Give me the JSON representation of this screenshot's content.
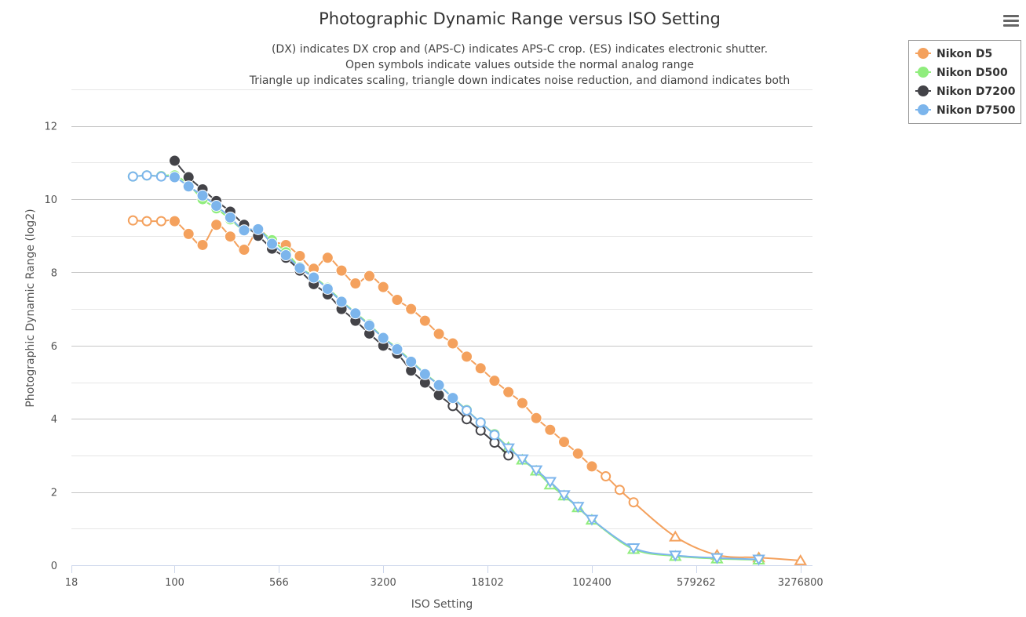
{
  "chart_data": {
    "type": "line",
    "title": "Photographic Dynamic Range versus ISO Setting",
    "subtitle": [
      "(DX) indicates DX crop and (APS-C) indicates APS-C crop. (ES) indicates electronic shutter.",
      "Open symbols indicate values outside the normal analog range",
      "Triangle up indicates scaling, triangle down indicates noise reduction, and diamond indicates both"
    ],
    "xlabel": "ISO Setting",
    "ylabel": "Photographic Dynamic Range (log2)",
    "x_scale": "log2",
    "xlim": [
      18,
      4000000
    ],
    "ylim": [
      0,
      13
    ],
    "x_tick_labels": [
      {
        "value": 18,
        "label": "18"
      },
      {
        "value": 100,
        "label": "100"
      },
      {
        "value": 566,
        "label": "566"
      },
      {
        "value": 3200,
        "label": "3200"
      },
      {
        "value": 18102,
        "label": "18102"
      },
      {
        "value": 102400,
        "label": "102400"
      },
      {
        "value": 579262,
        "label": "579262"
      },
      {
        "value": 3276800,
        "label": "3276800"
      }
    ],
    "y_ticks": [
      0,
      2,
      4,
      6,
      8,
      10,
      12
    ],
    "grid": true,
    "legend_placement": "top-right",
    "series": [
      {
        "name": "Nikon D5",
        "color": "#f4a15d",
        "points": [
          {
            "x": 50,
            "y": 9.42,
            "m": "open"
          },
          {
            "x": 63,
            "y": 9.4,
            "m": "open"
          },
          {
            "x": 80,
            "y": 9.4,
            "m": "open"
          },
          {
            "x": 100,
            "y": 9.4,
            "m": "filled"
          },
          {
            "x": 126,
            "y": 9.05,
            "m": "filled"
          },
          {
            "x": 159,
            "y": 8.75,
            "m": "filled"
          },
          {
            "x": 200,
            "y": 9.3,
            "m": "filled"
          },
          {
            "x": 252,
            "y": 8.98,
            "m": "filled"
          },
          {
            "x": 317,
            "y": 8.62,
            "m": "filled"
          },
          {
            "x": 400,
            "y": 9.15,
            "m": "filled"
          },
          {
            "x": 504,
            "y": 8.85,
            "m": "filled"
          },
          {
            "x": 635,
            "y": 8.75,
            "m": "filled"
          },
          {
            "x": 800,
            "y": 8.45,
            "m": "filled"
          },
          {
            "x": 1008,
            "y": 8.1,
            "m": "filled"
          },
          {
            "x": 1270,
            "y": 8.4,
            "m": "filled"
          },
          {
            "x": 1600,
            "y": 8.05,
            "m": "filled"
          },
          {
            "x": 2016,
            "y": 7.7,
            "m": "filled"
          },
          {
            "x": 2540,
            "y": 7.9,
            "m": "filled"
          },
          {
            "x": 3200,
            "y": 7.6,
            "m": "filled"
          },
          {
            "x": 4032,
            "y": 7.25,
            "m": "filled"
          },
          {
            "x": 5080,
            "y": 7.0,
            "m": "filled"
          },
          {
            "x": 6400,
            "y": 6.68,
            "m": "filled"
          },
          {
            "x": 8063,
            "y": 6.32,
            "m": "filled"
          },
          {
            "x": 10159,
            "y": 6.06,
            "m": "filled"
          },
          {
            "x": 12800,
            "y": 5.7,
            "m": "filled"
          },
          {
            "x": 16127,
            "y": 5.38,
            "m": "filled"
          },
          {
            "x": 20319,
            "y": 5.04,
            "m": "filled"
          },
          {
            "x": 25600,
            "y": 4.73,
            "m": "filled"
          },
          {
            "x": 32254,
            "y": 4.43,
            "m": "filled"
          },
          {
            "x": 40637,
            "y": 4.02,
            "m": "filled"
          },
          {
            "x": 51200,
            "y": 3.7,
            "m": "filled"
          },
          {
            "x": 64508,
            "y": 3.37,
            "m": "filled"
          },
          {
            "x": 81275,
            "y": 3.05,
            "m": "filled"
          },
          {
            "x": 102400,
            "y": 2.7,
            "m": "filled"
          },
          {
            "x": 129016,
            "y": 2.43,
            "m": "open"
          },
          {
            "x": 162550,
            "y": 2.06,
            "m": "open"
          },
          {
            "x": 204800,
            "y": 1.72,
            "m": "open"
          },
          {
            "x": 409600,
            "y": 0.78,
            "m": "tri-up"
          },
          {
            "x": 819200,
            "y": 0.28,
            "m": "tri-up"
          },
          {
            "x": 1638400,
            "y": 0.21,
            "m": "tri-up"
          },
          {
            "x": 3276800,
            "y": 0.13,
            "m": "tri-up"
          }
        ]
      },
      {
        "name": "Nikon D500",
        "color": "#90ed7d",
        "points": [
          {
            "x": 50,
            "y": 10.62,
            "m": "open"
          },
          {
            "x": 63,
            "y": 10.65,
            "m": "open"
          },
          {
            "x": 80,
            "y": 10.63,
            "m": "open"
          },
          {
            "x": 100,
            "y": 10.65,
            "m": "filled"
          },
          {
            "x": 126,
            "y": 10.4,
            "m": "filled"
          },
          {
            "x": 159,
            "y": 10.0,
            "m": "filled"
          },
          {
            "x": 200,
            "y": 9.75,
            "m": "filled"
          },
          {
            "x": 252,
            "y": 9.45,
            "m": "filled"
          },
          {
            "x": 317,
            "y": 9.15,
            "m": "filled"
          },
          {
            "x": 400,
            "y": 9.15,
            "m": "filled"
          },
          {
            "x": 504,
            "y": 8.88,
            "m": "filled"
          },
          {
            "x": 635,
            "y": 8.55,
            "m": "filled"
          },
          {
            "x": 800,
            "y": 8.15,
            "m": "filled"
          },
          {
            "x": 1008,
            "y": 7.88,
            "m": "filled"
          },
          {
            "x": 1270,
            "y": 7.58,
            "m": "filled"
          },
          {
            "x": 1600,
            "y": 7.22,
            "m": "filled"
          },
          {
            "x": 2016,
            "y": 6.9,
            "m": "filled"
          },
          {
            "x": 2540,
            "y": 6.58,
            "m": "filled"
          },
          {
            "x": 3200,
            "y": 6.22,
            "m": "filled"
          },
          {
            "x": 4032,
            "y": 5.93,
            "m": "filled"
          },
          {
            "x": 5080,
            "y": 5.58,
            "m": "filled"
          },
          {
            "x": 6400,
            "y": 5.24,
            "m": "filled"
          },
          {
            "x": 8063,
            "y": 4.93,
            "m": "filled"
          },
          {
            "x": 10159,
            "y": 4.58,
            "m": "filled"
          },
          {
            "x": 12800,
            "y": 4.24,
            "m": "open"
          },
          {
            "x": 16127,
            "y": 3.9,
            "m": "open"
          },
          {
            "x": 20319,
            "y": 3.58,
            "m": "open"
          },
          {
            "x": 25600,
            "y": 3.22,
            "m": "tri-up"
          },
          {
            "x": 32254,
            "y": 2.88,
            "m": "tri-up"
          },
          {
            "x": 40637,
            "y": 2.58,
            "m": "tri-up"
          },
          {
            "x": 51200,
            "y": 2.2,
            "m": "tri-up"
          },
          {
            "x": 64508,
            "y": 1.9,
            "m": "tri-up"
          },
          {
            "x": 81275,
            "y": 1.58,
            "m": "tri-up"
          },
          {
            "x": 102400,
            "y": 1.24,
            "m": "tri-up"
          },
          {
            "x": 204800,
            "y": 0.44,
            "m": "tri-up"
          },
          {
            "x": 409600,
            "y": 0.25,
            "m": "tri-up"
          },
          {
            "x": 819200,
            "y": 0.18,
            "m": "tri-up"
          },
          {
            "x": 1638400,
            "y": 0.15,
            "m": "tri-up"
          }
        ]
      },
      {
        "name": "Nikon D7200",
        "color": "#434348",
        "points": [
          {
            "x": 100,
            "y": 11.05,
            "m": "filled"
          },
          {
            "x": 126,
            "y": 10.6,
            "m": "filled"
          },
          {
            "x": 159,
            "y": 10.27,
            "m": "filled"
          },
          {
            "x": 200,
            "y": 9.95,
            "m": "filled"
          },
          {
            "x": 252,
            "y": 9.66,
            "m": "filled"
          },
          {
            "x": 317,
            "y": 9.3,
            "m": "filled"
          },
          {
            "x": 400,
            "y": 9.0,
            "m": "filled"
          },
          {
            "x": 504,
            "y": 8.65,
            "m": "filled"
          },
          {
            "x": 635,
            "y": 8.4,
            "m": "filled"
          },
          {
            "x": 800,
            "y": 8.05,
            "m": "filled"
          },
          {
            "x": 1008,
            "y": 7.68,
            "m": "filled"
          },
          {
            "x": 1270,
            "y": 7.4,
            "m": "filled"
          },
          {
            "x": 1600,
            "y": 7.0,
            "m": "filled"
          },
          {
            "x": 2016,
            "y": 6.68,
            "m": "filled"
          },
          {
            "x": 2540,
            "y": 6.33,
            "m": "filled"
          },
          {
            "x": 3200,
            "y": 6.0,
            "m": "filled"
          },
          {
            "x": 4032,
            "y": 5.78,
            "m": "filled"
          },
          {
            "x": 5080,
            "y": 5.32,
            "m": "filled"
          },
          {
            "x": 6400,
            "y": 4.99,
            "m": "filled"
          },
          {
            "x": 8063,
            "y": 4.65,
            "m": "filled"
          },
          {
            "x": 10159,
            "y": 4.35,
            "m": "open"
          },
          {
            "x": 12800,
            "y": 3.99,
            "m": "open"
          },
          {
            "x": 16127,
            "y": 3.68,
            "m": "open"
          },
          {
            "x": 20319,
            "y": 3.35,
            "m": "open"
          },
          {
            "x": 25600,
            "y": 3.0,
            "m": "open"
          }
        ]
      },
      {
        "name": "Nikon D7500",
        "color": "#7cb5ec",
        "points": [
          {
            "x": 50,
            "y": 10.62,
            "m": "open"
          },
          {
            "x": 63,
            "y": 10.65,
            "m": "open"
          },
          {
            "x": 80,
            "y": 10.62,
            "m": "open"
          },
          {
            "x": 100,
            "y": 10.6,
            "m": "filled"
          },
          {
            "x": 126,
            "y": 10.35,
            "m": "filled"
          },
          {
            "x": 159,
            "y": 10.1,
            "m": "filled"
          },
          {
            "x": 200,
            "y": 9.82,
            "m": "filled"
          },
          {
            "x": 252,
            "y": 9.5,
            "m": "filled"
          },
          {
            "x": 317,
            "y": 9.15,
            "m": "filled"
          },
          {
            "x": 400,
            "y": 9.18,
            "m": "filled"
          },
          {
            "x": 504,
            "y": 8.78,
            "m": "filled"
          },
          {
            "x": 635,
            "y": 8.47,
            "m": "filled"
          },
          {
            "x": 800,
            "y": 8.12,
            "m": "filled"
          },
          {
            "x": 1008,
            "y": 7.86,
            "m": "filled"
          },
          {
            "x": 1270,
            "y": 7.55,
            "m": "filled"
          },
          {
            "x": 1600,
            "y": 7.2,
            "m": "filled"
          },
          {
            "x": 2016,
            "y": 6.88,
            "m": "filled"
          },
          {
            "x": 2540,
            "y": 6.55,
            "m": "filled"
          },
          {
            "x": 3200,
            "y": 6.21,
            "m": "filled"
          },
          {
            "x": 4032,
            "y": 5.9,
            "m": "filled"
          },
          {
            "x": 5080,
            "y": 5.56,
            "m": "filled"
          },
          {
            "x": 6400,
            "y": 5.22,
            "m": "filled"
          },
          {
            "x": 8063,
            "y": 4.92,
            "m": "filled"
          },
          {
            "x": 10159,
            "y": 4.57,
            "m": "filled"
          },
          {
            "x": 12800,
            "y": 4.23,
            "m": "open"
          },
          {
            "x": 16127,
            "y": 3.9,
            "m": "open"
          },
          {
            "x": 20319,
            "y": 3.56,
            "m": "open"
          },
          {
            "x": 25600,
            "y": 3.2,
            "m": "tri-down"
          },
          {
            "x": 32254,
            "y": 2.9,
            "m": "tri-down"
          },
          {
            "x": 40637,
            "y": 2.6,
            "m": "tri-down"
          },
          {
            "x": 51200,
            "y": 2.28,
            "m": "tri-down"
          },
          {
            "x": 64508,
            "y": 1.92,
            "m": "tri-down"
          },
          {
            "x": 81275,
            "y": 1.6,
            "m": "tri-down"
          },
          {
            "x": 102400,
            "y": 1.25,
            "m": "tri-down"
          },
          {
            "x": 204800,
            "y": 0.47,
            "m": "tri-down"
          },
          {
            "x": 409600,
            "y": 0.27,
            "m": "tri-down"
          },
          {
            "x": 819200,
            "y": 0.2,
            "m": "tri-down"
          },
          {
            "x": 1638400,
            "y": 0.16,
            "m": "tri-down"
          }
        ]
      }
    ]
  },
  "menu": {
    "icon": "hamburger-menu-icon"
  }
}
